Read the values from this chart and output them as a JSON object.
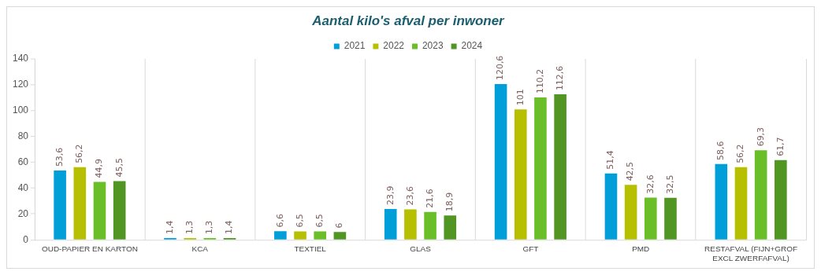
{
  "chart_data": {
    "type": "bar",
    "title": "Aantal kilo's afval per inwoner",
    "categories": [
      "OUD-PAPIER EN KARTON",
      "KCA",
      "TEXTIEL",
      "GLAS",
      "GFT",
      "PMD",
      "RESTAFVAL (FIJN+GROF EXCL ZWERFAFVAL)"
    ],
    "series": [
      {
        "name": "2021",
        "color": "#009fd9",
        "values": [
          53.6,
          1.4,
          6.6,
          23.9,
          120.6,
          51.4,
          58.6
        ],
        "value_labels": [
          "53,6",
          "1,4",
          "6,6",
          "23,9",
          "120,6",
          "51,4",
          "58,6"
        ]
      },
      {
        "name": "2022",
        "color": "#b6bf00",
        "values": [
          56.2,
          1.3,
          6.5,
          23.6,
          101,
          42.5,
          56.2
        ],
        "value_labels": [
          "56,2",
          "1,3",
          "6,5",
          "23,6",
          "101",
          "42,5",
          "56,2"
        ]
      },
      {
        "name": "2023",
        "color": "#6abf29",
        "values": [
          44.9,
          1.3,
          6.5,
          21.6,
          110.2,
          32.6,
          69.3
        ],
        "value_labels": [
          "44,9",
          "1,3",
          "6,5",
          "21,6",
          "110,2",
          "32,6",
          "69,3"
        ]
      },
      {
        "name": "2024",
        "color": "#519523",
        "values": [
          45.5,
          1.4,
          6,
          18.9,
          112.6,
          32.5,
          61.7
        ],
        "value_labels": [
          "45,5",
          "1,4",
          "6",
          "18,9",
          "112,6",
          "32,5",
          "61,7"
        ]
      }
    ],
    "ylim": [
      0,
      140
    ],
    "yticks": [
      0,
      20,
      40,
      60,
      80,
      100,
      120,
      140
    ],
    "grid": "x",
    "legend": "top"
  }
}
